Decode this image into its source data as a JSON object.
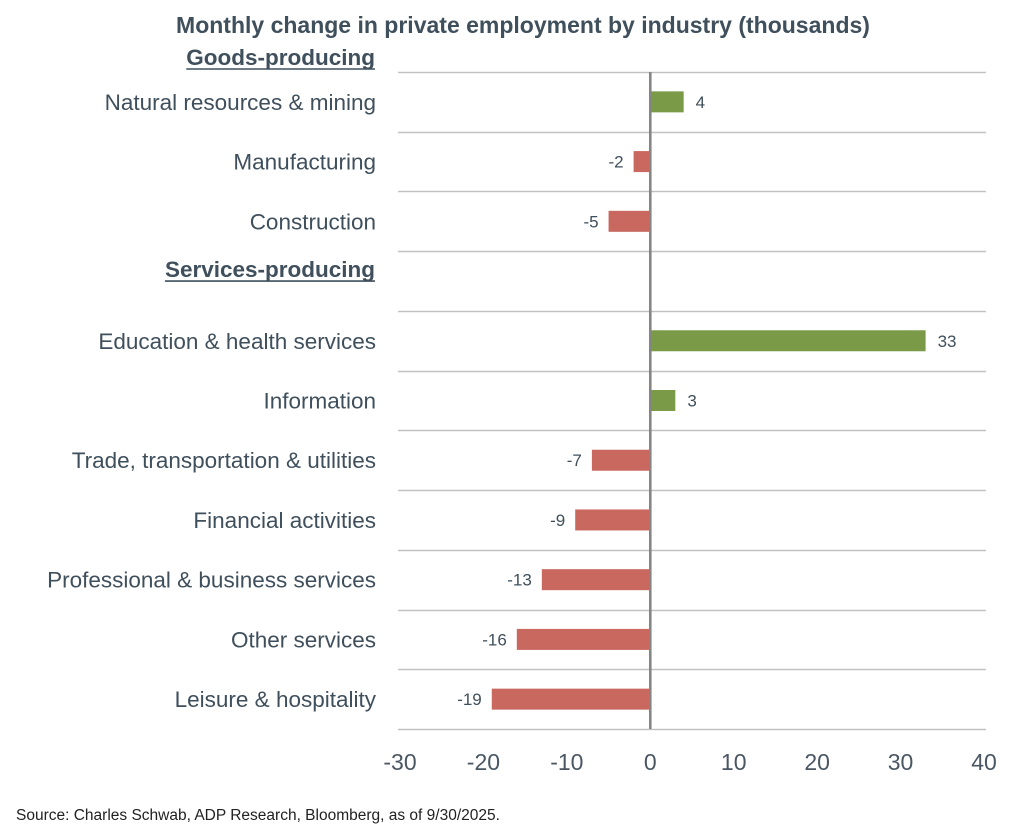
{
  "chart_data": {
    "type": "bar",
    "orientation": "horizontal",
    "title": "Monthly change in private employment by industry (thousands)",
    "xlabel": "",
    "ylabel": "",
    "xlim": [
      -30,
      40
    ],
    "xticks": [
      -30,
      -20,
      -10,
      0,
      10,
      20,
      30,
      40
    ],
    "grid": true,
    "legend": "none",
    "colors": {
      "positive": "#7a9a47",
      "negative": "#c9685e",
      "text": "#3f4f5c",
      "axis": "#858585",
      "grid": "#c2c2c2"
    },
    "groups": [
      {
        "name": "Goods-producing",
        "categories": [
          "Natural resources & mining",
          "Manufacturing",
          "Construction"
        ],
        "values": [
          4,
          -2,
          -5
        ]
      },
      {
        "name": "Services-producing",
        "categories": [
          "Education & health services",
          "Information",
          "Trade, transportation & utilities",
          "Financial activities",
          "Professional & business services",
          "Other services",
          "Leisure & hospitality"
        ],
        "values": [
          33,
          3,
          -7,
          -9,
          -13,
          -16,
          -19
        ]
      }
    ],
    "source": "Source: Charles Schwab, ADP Research, Bloomberg, as of 9/30/2025."
  }
}
